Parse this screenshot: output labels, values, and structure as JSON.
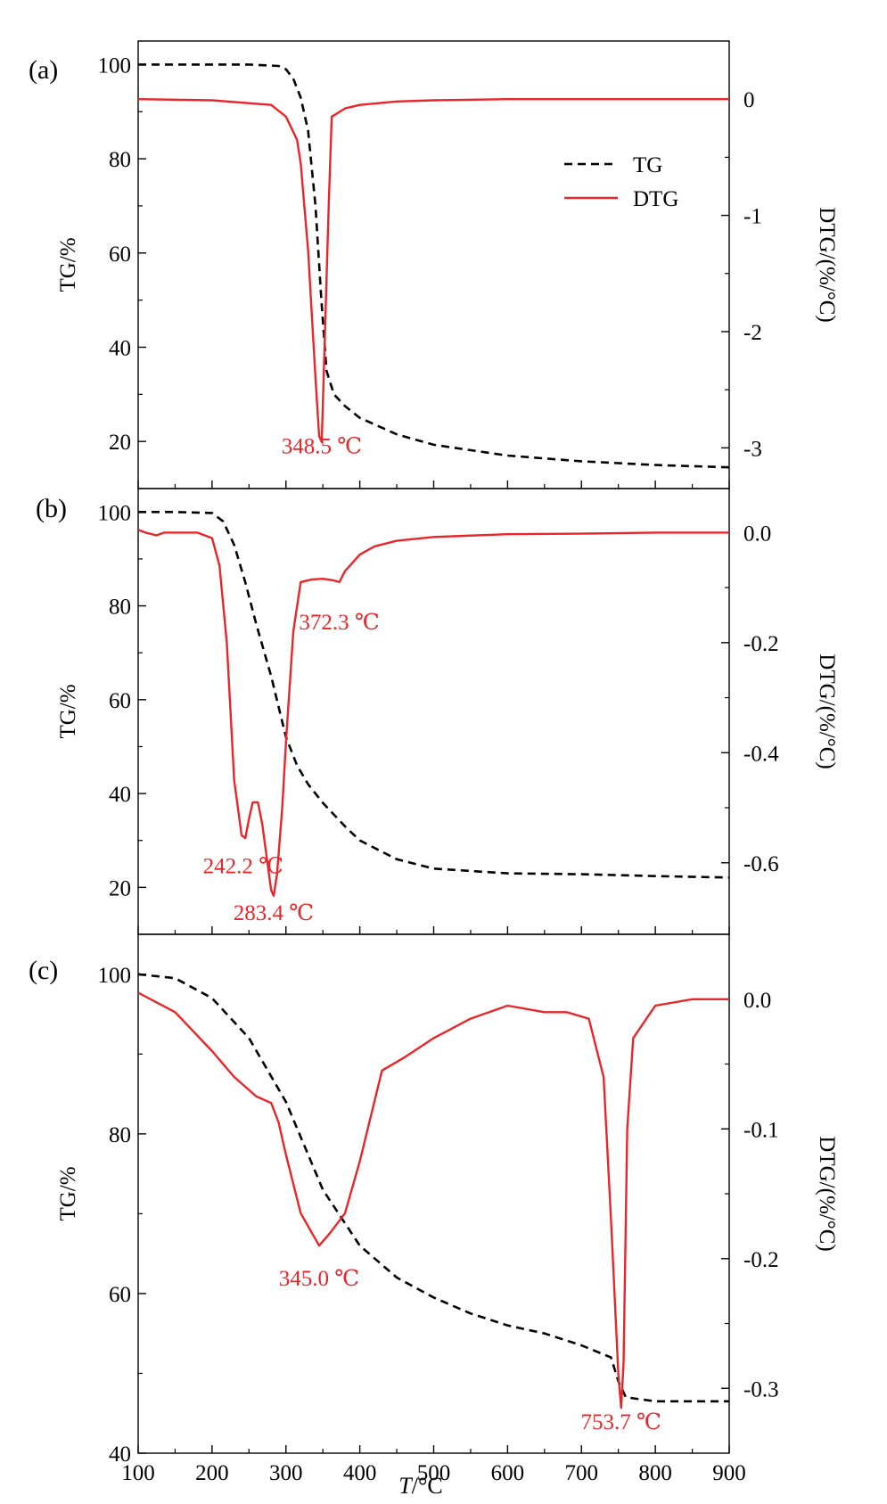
{
  "x_axis": {
    "label_italic": "T",
    "label_rest": "/°C",
    "ticks": [
      100,
      200,
      300,
      400,
      500,
      600,
      700,
      800,
      900
    ],
    "range": [
      100,
      900
    ]
  },
  "legend": {
    "tg": "TG",
    "dtg": "DTG"
  },
  "colors": {
    "tg": "#000000",
    "dtg": "#e8262a",
    "annotation": "#e8262a"
  },
  "chart_data": [
    {
      "type": "line",
      "panel_label": "(a)",
      "ylabel_left": "TG/%",
      "ylabel_right": "DTG/(%/°C)",
      "ylim_left": [
        10,
        105
      ],
      "ylim_right": [
        -3.35,
        0.5
      ],
      "yticks_left": [
        20,
        40,
        60,
        80,
        100
      ],
      "yticks_right": [
        -3,
        -2,
        -1,
        0
      ],
      "yticks_right_labels": [
        "-3",
        "-2",
        "-1",
        "0"
      ],
      "legend_position": "top-right",
      "series": [
        {
          "name": "TG",
          "axis": "left",
          "style": "dashed",
          "color": "#000000",
          "x": [
            100,
            200,
            250,
            290,
            300,
            310,
            320,
            330,
            340,
            348,
            355,
            365,
            380,
            400,
            450,
            500,
            600,
            700,
            800,
            900
          ],
          "y": [
            100,
            100,
            100,
            99.7,
            99,
            97,
            93,
            86,
            70,
            50,
            35,
            30,
            27.5,
            25,
            21.5,
            19.3,
            17,
            15.8,
            15,
            14.5
          ]
        },
        {
          "name": "DTG",
          "axis": "right",
          "style": "solid",
          "color": "#e8262a",
          "x": [
            100,
            200,
            280,
            300,
            315,
            320,
            330,
            340,
            345,
            348.5,
            352,
            358,
            362,
            370,
            380,
            400,
            450,
            500,
            600,
            700,
            800,
            900
          ],
          "y": [
            0,
            -0.01,
            -0.05,
            -0.15,
            -0.35,
            -0.55,
            -1.3,
            -2.4,
            -2.9,
            -2.95,
            -2.2,
            -0.9,
            -0.15,
            -0.12,
            -0.08,
            -0.05,
            -0.02,
            -0.01,
            0,
            0,
            0,
            0
          ]
        }
      ],
      "annotations": [
        {
          "text": "348.5 ℃",
          "x": 348.5,
          "y_left": 17.5
        }
      ]
    },
    {
      "type": "line",
      "panel_label": "(b)",
      "ylabel_left": "TG/%",
      "ylabel_right": "DTG/(%/°C)",
      "ylim_left": [
        10,
        105
      ],
      "ylim_right": [
        -0.73,
        0.08
      ],
      "yticks_left": [
        20,
        40,
        60,
        80,
        100
      ],
      "yticks_right": [
        -0.6,
        -0.4,
        -0.2,
        0.0
      ],
      "yticks_right_labels": [
        "-0.6",
        "-0.4",
        "-0.2",
        "0.0"
      ],
      "series": [
        {
          "name": "TG",
          "axis": "left",
          "style": "dashed",
          "color": "#000000",
          "x": [
            100,
            150,
            200,
            215,
            230,
            245,
            260,
            280,
            300,
            315,
            330,
            350,
            380,
            400,
            450,
            500,
            600,
            700,
            800,
            900
          ],
          "y": [
            100,
            100,
            99.8,
            98,
            93,
            85,
            76,
            65,
            52,
            46,
            42,
            38,
            33,
            30,
            26,
            24,
            23,
            22.8,
            22.4,
            22.1
          ]
        },
        {
          "name": "DTG",
          "axis": "right",
          "style": "solid",
          "color": "#e8262a",
          "x": [
            100,
            110,
            125,
            135,
            150,
            180,
            200,
            210,
            220,
            230,
            240,
            245,
            250,
            255,
            262,
            268,
            275,
            280,
            283.4,
            288,
            295,
            300,
            310,
            320,
            335,
            350,
            365,
            372.3,
            380,
            400,
            420,
            450,
            500,
            600,
            700,
            800,
            900
          ],
          "y": [
            0.005,
            0,
            -0.005,
            0,
            0,
            0,
            -0.01,
            -0.06,
            -0.2,
            -0.45,
            -0.55,
            -0.555,
            -0.52,
            -0.49,
            -0.49,
            -0.53,
            -0.6,
            -0.65,
            -0.66,
            -0.62,
            -0.5,
            -0.38,
            -0.18,
            -0.09,
            -0.085,
            -0.084,
            -0.087,
            -0.09,
            -0.07,
            -0.04,
            -0.025,
            -0.015,
            -0.008,
            -0.003,
            -0.002,
            0,
            0
          ]
        }
      ],
      "annotations": [
        {
          "text": "372.3 ℃",
          "x": 372.3,
          "y_left": 75
        },
        {
          "text": "242.2 ℃",
          "x": 242.2,
          "y_left": 23
        },
        {
          "text": "283.4 ℃",
          "x": 283.4,
          "y_left": 13
        }
      ]
    },
    {
      "type": "line",
      "panel_label": "(c)",
      "ylabel_left": "TG/%",
      "ylabel_right": "DTG/(%/°C)",
      "ylim_left": [
        40,
        105
      ],
      "ylim_right": [
        -0.35,
        0.05
      ],
      "yticks_left": [
        40,
        60,
        80,
        100
      ],
      "yticks_right": [
        -0.3,
        -0.2,
        -0.1,
        0.0
      ],
      "yticks_right_labels": [
        "-0.3",
        "-0.2",
        "-0.1",
        "0.0"
      ],
      "series": [
        {
          "name": "TG",
          "axis": "left",
          "style": "dashed",
          "color": "#000000",
          "x": [
            100,
            150,
            200,
            250,
            300,
            350,
            400,
            450,
            500,
            550,
            600,
            650,
            700,
            740,
            750,
            760,
            800,
            900
          ],
          "y": [
            100,
            99.5,
            97,
            92,
            84,
            73,
            66,
            62,
            59.5,
            57.5,
            56,
            55,
            53.5,
            52,
            49,
            47,
            46.5,
            46.5
          ]
        },
        {
          "name": "DTG",
          "axis": "right",
          "style": "solid",
          "color": "#e8262a",
          "x": [
            100,
            150,
            200,
            230,
            260,
            280,
            290,
            300,
            320,
            345,
            360,
            380,
            400,
            430,
            460,
            500,
            550,
            600,
            650,
            680,
            710,
            730,
            740,
            750,
            753.7,
            757,
            762,
            770,
            800,
            850,
            900
          ],
          "y": [
            0.005,
            -0.01,
            -0.04,
            -0.06,
            -0.075,
            -0.08,
            -0.095,
            -0.12,
            -0.165,
            -0.19,
            -0.18,
            -0.165,
            -0.125,
            -0.055,
            -0.045,
            -0.03,
            -0.015,
            -0.005,
            -0.01,
            -0.01,
            -0.015,
            -0.06,
            -0.17,
            -0.29,
            -0.315,
            -0.28,
            -0.1,
            -0.03,
            -0.005,
            0,
            0
          ]
        }
      ],
      "annotations": [
        {
          "text": "345.0 ℃",
          "x": 345,
          "y_left": 61
        },
        {
          "text": "753.7 ℃",
          "x": 753.7,
          "y_left": 43
        }
      ]
    }
  ]
}
